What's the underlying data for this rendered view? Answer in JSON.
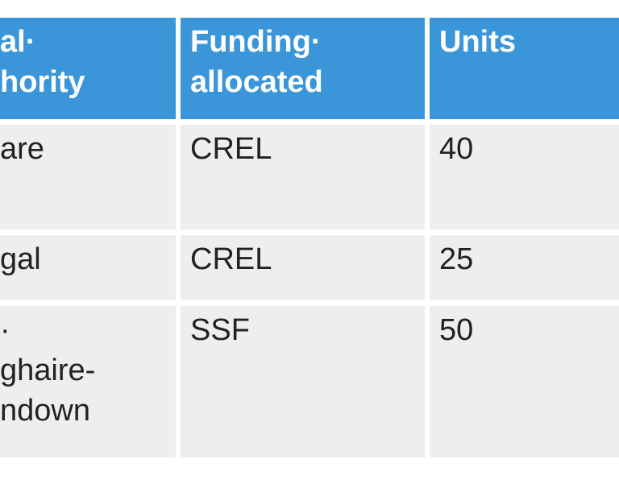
{
  "table": {
    "header": [
      [
        "al·",
        "hority"
      ],
      [
        "Funding·",
        "allocated"
      ],
      [
        "Units"
      ]
    ],
    "rows": [
      [
        [
          "are"
        ],
        [
          "CREL"
        ],
        [
          "40"
        ]
      ],
      [
        [
          "gal"
        ],
        [
          "CREL"
        ],
        [
          "25"
        ]
      ],
      [
        [
          "·",
          "ghaire-",
          "ndown"
        ],
        [
          "SSF"
        ],
        [
          "50"
        ]
      ]
    ]
  }
}
